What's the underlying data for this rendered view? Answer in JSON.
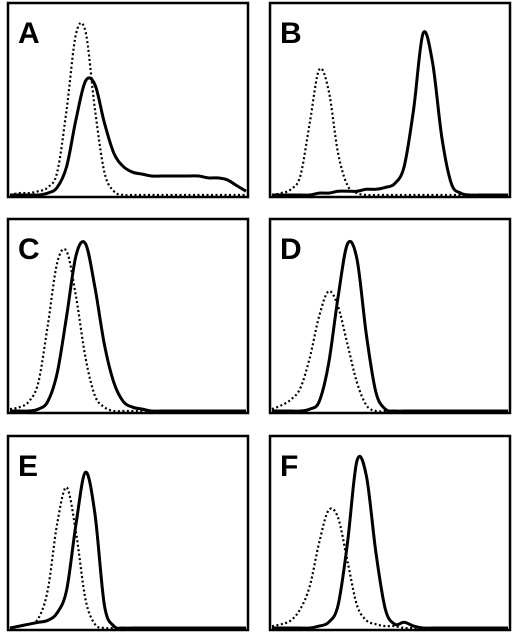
{
  "chart_data": [
    {
      "type": "line",
      "title": "A",
      "x": [
        0,
        4,
        8,
        12,
        16,
        20,
        24,
        28,
        32,
        36,
        40,
        44,
        48,
        52,
        56,
        60,
        64,
        68,
        72,
        76,
        80,
        84,
        88,
        92,
        96,
        100
      ],
      "xlim": [
        0,
        100
      ],
      "ylim": [
        0,
        100
      ],
      "series": [
        {
          "color": "#000000",
          "dash": "dotted",
          "values": [
            0,
            1,
            1,
            2,
            4,
            12,
            45,
            85,
            86,
            45,
            12,
            2,
            0,
            0,
            0,
            0,
            0,
            0,
            0,
            0,
            0,
            0,
            0,
            0,
            0,
            0
          ]
        },
        {
          "color": "#000000",
          "dash": "solid",
          "values": [
            0,
            0,
            0,
            0,
            1,
            4,
            15,
            40,
            60,
            58,
            38,
            22,
            15,
            12,
            11,
            10,
            10,
            10,
            10,
            10,
            10,
            9,
            9,
            8,
            5,
            2
          ]
        }
      ]
    },
    {
      "type": "line",
      "title": "B",
      "x": [
        0,
        4,
        8,
        12,
        16,
        20,
        24,
        28,
        32,
        36,
        40,
        44,
        48,
        52,
        56,
        60,
        64,
        68,
        72,
        76,
        80,
        84,
        88,
        92,
        96,
        100
      ],
      "xlim": [
        0,
        100
      ],
      "ylim": [
        0,
        100
      ],
      "series": [
        {
          "color": "#000000",
          "dash": "dotted",
          "values": [
            0,
            1,
            3,
            10,
            38,
            66,
            55,
            22,
            5,
            1,
            0,
            0,
            0,
            0,
            0,
            0,
            0,
            0,
            0,
            0,
            0,
            0,
            0,
            0,
            0,
            0
          ]
        },
        {
          "color": "#000000",
          "dash": "solid",
          "values": [
            0,
            0,
            0,
            0,
            0,
            1,
            1,
            2,
            2,
            2,
            3,
            3,
            4,
            6,
            15,
            45,
            85,
            70,
            30,
            6,
            1,
            0,
            0,
            0,
            0,
            0
          ]
        }
      ]
    },
    {
      "type": "line",
      "title": "C",
      "x": [
        0,
        4,
        8,
        12,
        16,
        20,
        24,
        28,
        32,
        36,
        40,
        44,
        48,
        52,
        56,
        60,
        64,
        68,
        72,
        76,
        80,
        84,
        88,
        92,
        96,
        100
      ],
      "xlim": [
        0,
        100
      ],
      "ylim": [
        0,
        100
      ],
      "series": [
        {
          "color": "#000000",
          "dash": "dotted",
          "values": [
            1,
            2,
            5,
            15,
            45,
            78,
            84,
            60,
            28,
            8,
            2,
            0,
            0,
            0,
            0,
            0,
            0,
            0,
            0,
            0,
            0,
            0,
            0,
            0,
            0,
            0
          ]
        },
        {
          "color": "#000000",
          "dash": "solid",
          "values": [
            0,
            0,
            0,
            1,
            5,
            20,
            50,
            82,
            88,
            65,
            35,
            15,
            5,
            2,
            1,
            0,
            0,
            0,
            0,
            0,
            0,
            0,
            0,
            0,
            0,
            0
          ]
        }
      ]
    },
    {
      "type": "line",
      "title": "D",
      "x": [
        0,
        4,
        8,
        12,
        16,
        20,
        24,
        28,
        32,
        36,
        40,
        44,
        48,
        52,
        56,
        60,
        64,
        68,
        72,
        76,
        80,
        84,
        88,
        92,
        96,
        100
      ],
      "xlim": [
        0,
        100
      ],
      "ylim": [
        0,
        100
      ],
      "series": [
        {
          "color": "#000000",
          "dash": "dotted",
          "values": [
            1,
            3,
            6,
            12,
            28,
            50,
            63,
            55,
            35,
            15,
            3,
            0,
            0,
            0,
            0,
            0,
            0,
            0,
            0,
            0,
            0,
            0,
            0,
            0,
            0,
            0
          ]
        },
        {
          "color": "#000000",
          "dash": "solid",
          "values": [
            0,
            0,
            0,
            0,
            1,
            5,
            25,
            60,
            88,
            80,
            40,
            10,
            1,
            0,
            0,
            0,
            0,
            0,
            0,
            0,
            0,
            0,
            0,
            0,
            0,
            0
          ]
        }
      ]
    },
    {
      "type": "line",
      "title": "E",
      "x": [
        0,
        4,
        8,
        12,
        16,
        20,
        24,
        28,
        32,
        36,
        40,
        44,
        48,
        52,
        56,
        60,
        64,
        68,
        72,
        76,
        80,
        84,
        88,
        92,
        96,
        100
      ],
      "xlim": [
        0,
        100
      ],
      "ylim": [
        0,
        100
      ],
      "series": [
        {
          "color": "#000000",
          "dash": "dotted",
          "values": [
            0,
            1,
            2,
            5,
            20,
            55,
            74,
            50,
            15,
            2,
            0,
            0,
            0,
            0,
            0,
            0,
            0,
            0,
            0,
            0,
            0,
            0,
            0,
            0,
            0,
            0
          ]
        },
        {
          "color": "#000000",
          "dash": "solid",
          "values": [
            0,
            1,
            2,
            3,
            4,
            8,
            20,
            55,
            82,
            60,
            12,
            1,
            0,
            0,
            0,
            0,
            0,
            0,
            0,
            0,
            0,
            0,
            0,
            0,
            0,
            0
          ]
        }
      ]
    },
    {
      "type": "line",
      "title": "F",
      "x": [
        0,
        4,
        8,
        12,
        16,
        20,
        24,
        28,
        32,
        36,
        40,
        44,
        48,
        52,
        56,
        60,
        64,
        68,
        72,
        76,
        80,
        84,
        88,
        92,
        96,
        100
      ],
      "xlim": [
        0,
        100
      ],
      "ylim": [
        0,
        100
      ],
      "series": [
        {
          "color": "#000000",
          "dash": "dotted",
          "values": [
            1,
            2,
            4,
            10,
            22,
            45,
            62,
            58,
            35,
            12,
            4,
            2,
            1,
            1,
            0,
            0,
            0,
            0,
            0,
            0,
            0,
            0,
            0,
            0,
            0,
            0
          ]
        },
        {
          "color": "#000000",
          "dash": "solid",
          "values": [
            0,
            0,
            0,
            0,
            0,
            1,
            3,
            12,
            45,
            88,
            80,
            40,
            10,
            2,
            3,
            1,
            0,
            0,
            0,
            0,
            0,
            0,
            0,
            0,
            0,
            0
          ]
        }
      ]
    }
  ]
}
